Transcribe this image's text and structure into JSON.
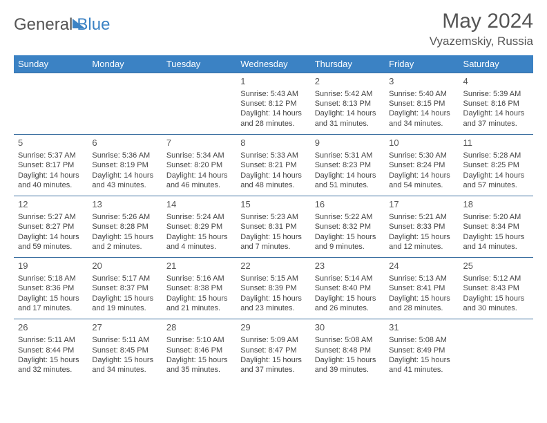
{
  "brand": {
    "part1": "General",
    "part2": "Blue"
  },
  "title": "May 2024",
  "location": "Vyazemskiy, Russia",
  "colors": {
    "header_bg": "#3b82c4",
    "header_fg": "#ffffff",
    "border": "#3b6fa0",
    "text": "#444444",
    "title": "#555555"
  },
  "weekdays": [
    "Sunday",
    "Monday",
    "Tuesday",
    "Wednesday",
    "Thursday",
    "Friday",
    "Saturday"
  ],
  "weeks": [
    [
      null,
      null,
      null,
      {
        "n": "1",
        "sr": "5:43 AM",
        "ss": "8:12 PM",
        "dl": "14 hours and 28 minutes."
      },
      {
        "n": "2",
        "sr": "5:42 AM",
        "ss": "8:13 PM",
        "dl": "14 hours and 31 minutes."
      },
      {
        "n": "3",
        "sr": "5:40 AM",
        "ss": "8:15 PM",
        "dl": "14 hours and 34 minutes."
      },
      {
        "n": "4",
        "sr": "5:39 AM",
        "ss": "8:16 PM",
        "dl": "14 hours and 37 minutes."
      }
    ],
    [
      {
        "n": "5",
        "sr": "5:37 AM",
        "ss": "8:17 PM",
        "dl": "14 hours and 40 minutes."
      },
      {
        "n": "6",
        "sr": "5:36 AM",
        "ss": "8:19 PM",
        "dl": "14 hours and 43 minutes."
      },
      {
        "n": "7",
        "sr": "5:34 AM",
        "ss": "8:20 PM",
        "dl": "14 hours and 46 minutes."
      },
      {
        "n": "8",
        "sr": "5:33 AM",
        "ss": "8:21 PM",
        "dl": "14 hours and 48 minutes."
      },
      {
        "n": "9",
        "sr": "5:31 AM",
        "ss": "8:23 PM",
        "dl": "14 hours and 51 minutes."
      },
      {
        "n": "10",
        "sr": "5:30 AM",
        "ss": "8:24 PM",
        "dl": "14 hours and 54 minutes."
      },
      {
        "n": "11",
        "sr": "5:28 AM",
        "ss": "8:25 PM",
        "dl": "14 hours and 57 minutes."
      }
    ],
    [
      {
        "n": "12",
        "sr": "5:27 AM",
        "ss": "8:27 PM",
        "dl": "14 hours and 59 minutes."
      },
      {
        "n": "13",
        "sr": "5:26 AM",
        "ss": "8:28 PM",
        "dl": "15 hours and 2 minutes."
      },
      {
        "n": "14",
        "sr": "5:24 AM",
        "ss": "8:29 PM",
        "dl": "15 hours and 4 minutes."
      },
      {
        "n": "15",
        "sr": "5:23 AM",
        "ss": "8:31 PM",
        "dl": "15 hours and 7 minutes."
      },
      {
        "n": "16",
        "sr": "5:22 AM",
        "ss": "8:32 PM",
        "dl": "15 hours and 9 minutes."
      },
      {
        "n": "17",
        "sr": "5:21 AM",
        "ss": "8:33 PM",
        "dl": "15 hours and 12 minutes."
      },
      {
        "n": "18",
        "sr": "5:20 AM",
        "ss": "8:34 PM",
        "dl": "15 hours and 14 minutes."
      }
    ],
    [
      {
        "n": "19",
        "sr": "5:18 AM",
        "ss": "8:36 PM",
        "dl": "15 hours and 17 minutes."
      },
      {
        "n": "20",
        "sr": "5:17 AM",
        "ss": "8:37 PM",
        "dl": "15 hours and 19 minutes."
      },
      {
        "n": "21",
        "sr": "5:16 AM",
        "ss": "8:38 PM",
        "dl": "15 hours and 21 minutes."
      },
      {
        "n": "22",
        "sr": "5:15 AM",
        "ss": "8:39 PM",
        "dl": "15 hours and 23 minutes."
      },
      {
        "n": "23",
        "sr": "5:14 AM",
        "ss": "8:40 PM",
        "dl": "15 hours and 26 minutes."
      },
      {
        "n": "24",
        "sr": "5:13 AM",
        "ss": "8:41 PM",
        "dl": "15 hours and 28 minutes."
      },
      {
        "n": "25",
        "sr": "5:12 AM",
        "ss": "8:43 PM",
        "dl": "15 hours and 30 minutes."
      }
    ],
    [
      {
        "n": "26",
        "sr": "5:11 AM",
        "ss": "8:44 PM",
        "dl": "15 hours and 32 minutes."
      },
      {
        "n": "27",
        "sr": "5:11 AM",
        "ss": "8:45 PM",
        "dl": "15 hours and 34 minutes."
      },
      {
        "n": "28",
        "sr": "5:10 AM",
        "ss": "8:46 PM",
        "dl": "15 hours and 35 minutes."
      },
      {
        "n": "29",
        "sr": "5:09 AM",
        "ss": "8:47 PM",
        "dl": "15 hours and 37 minutes."
      },
      {
        "n": "30",
        "sr": "5:08 AM",
        "ss": "8:48 PM",
        "dl": "15 hours and 39 minutes."
      },
      {
        "n": "31",
        "sr": "5:08 AM",
        "ss": "8:49 PM",
        "dl": "15 hours and 41 minutes."
      },
      null
    ]
  ],
  "labels": {
    "sunrise": "Sunrise: ",
    "sunset": "Sunset: ",
    "daylight": "Daylight: "
  }
}
